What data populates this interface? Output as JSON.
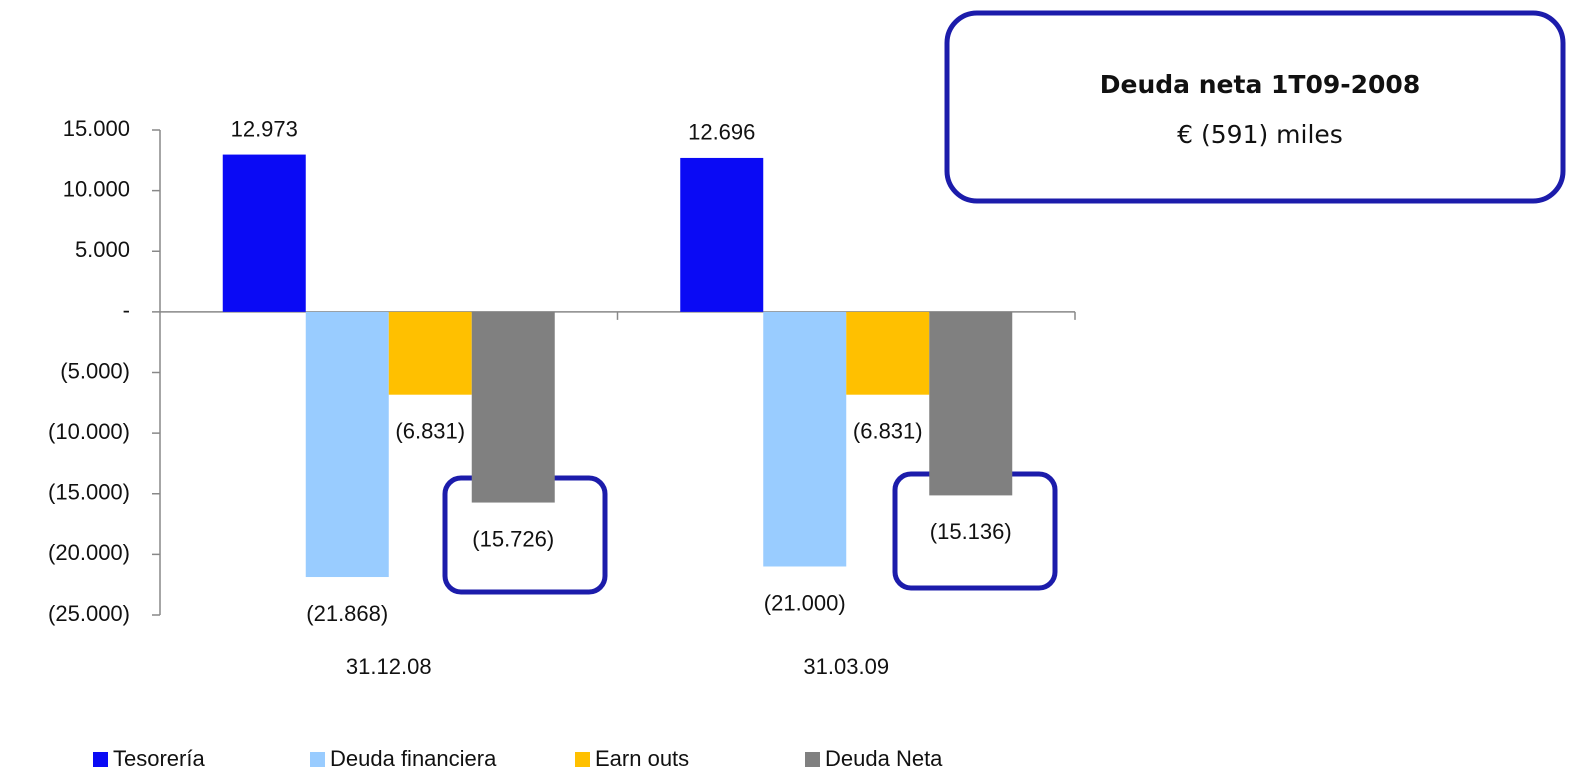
{
  "chart_data": {
    "type": "bar",
    "categories": [
      "31.12.08",
      "31.03.09"
    ],
    "series": [
      {
        "name": "Tesorería",
        "color": "#0a0af5",
        "values": [
          12973,
          12696
        ],
        "value_labels": [
          "12.973",
          "12.696"
        ]
      },
      {
        "name": "Deuda financiera",
        "color": "#99ccff",
        "values": [
          -21868,
          -21000
        ],
        "value_labels": [
          "(21.868)",
          "(21.000)"
        ]
      },
      {
        "name": "Earn outs",
        "color": "#ffc000",
        "values": [
          -6831,
          -6831
        ],
        "value_labels": [
          "(6.831)",
          "(6.831)"
        ]
      },
      {
        "name": "Deuda Neta",
        "color": "#808080",
        "values": [
          -15726,
          -15136
        ],
        "value_labels": [
          "(15.726)",
          "(15.136)"
        ]
      }
    ],
    "ylim": [
      -25000,
      15000
    ],
    "yticks": [
      {
        "value": 15000,
        "label": "15.000"
      },
      {
        "value": 10000,
        "label": "10.000"
      },
      {
        "value": 5000,
        "label": "5.000"
      },
      {
        "value": 0,
        "label": "-"
      },
      {
        "value": -5000,
        "label": "(5.000)"
      },
      {
        "value": -10000,
        "label": "(10.000)"
      },
      {
        "value": -15000,
        "label": "(15.000)"
      },
      {
        "value": -20000,
        "label": "(20.000)"
      },
      {
        "value": -25000,
        "label": "(25.000)"
      }
    ],
    "annotation": {
      "title": "Deuda neta 1T09-2008",
      "text": "€ (591) miles"
    },
    "legend": "bottom"
  }
}
